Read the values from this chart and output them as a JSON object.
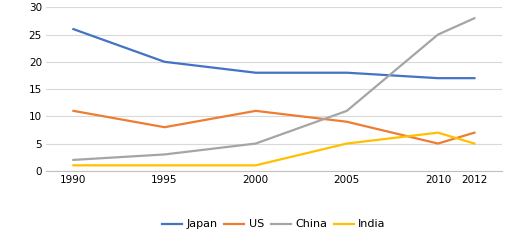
{
  "years": [
    1990,
    1995,
    2000,
    2005,
    2010,
    2012
  ],
  "japan": [
    26,
    20,
    18,
    18,
    17,
    17
  ],
  "us": [
    11,
    8,
    11,
    9,
    5,
    7
  ],
  "china": [
    2,
    3,
    5,
    11,
    25,
    28
  ],
  "india": [
    1,
    1,
    1,
    5,
    7,
    5
  ],
  "colors": {
    "japan": "#4472C4",
    "us": "#ED7D31",
    "china": "#A5A5A5",
    "india": "#FFC000"
  },
  "ylim": [
    0,
    30
  ],
  "yticks": [
    0,
    5,
    10,
    15,
    20,
    25,
    30
  ],
  "xticks": [
    1990,
    1995,
    2000,
    2005,
    2010,
    2012
  ],
  "background_color": "#ffffff",
  "grid_color": "#d9d9d9",
  "line_width": 1.6
}
